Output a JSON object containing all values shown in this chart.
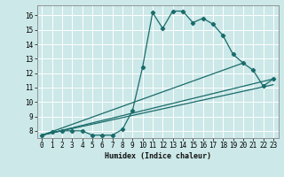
{
  "title": "",
  "xlabel": "Humidex (Indice chaleur)",
  "background_color": "#cce8e8",
  "grid_color": "#ffffff",
  "line_color": "#1a6b6b",
  "xlim": [
    -0.5,
    23.5
  ],
  "ylim": [
    7.5,
    16.7
  ],
  "xticks": [
    0,
    1,
    2,
    3,
    4,
    5,
    6,
    7,
    8,
    9,
    10,
    11,
    12,
    13,
    14,
    15,
    16,
    17,
    18,
    19,
    20,
    21,
    22,
    23
  ],
  "yticks": [
    8,
    9,
    10,
    11,
    12,
    13,
    14,
    15,
    16
  ],
  "main_x": [
    0,
    1,
    2,
    3,
    4,
    5,
    6,
    7,
    8,
    9,
    10,
    11,
    12,
    13,
    14,
    15,
    16,
    17,
    18,
    19,
    20,
    21,
    22,
    23
  ],
  "main_y": [
    7.7,
    7.9,
    8.0,
    8.0,
    8.0,
    7.7,
    7.7,
    7.7,
    8.1,
    9.4,
    12.4,
    16.2,
    15.1,
    16.3,
    16.3,
    15.5,
    15.8,
    15.4,
    14.6,
    13.3,
    12.7,
    12.2,
    11.1,
    11.6
  ],
  "line1_x": [
    0,
    23
  ],
  "line1_y": [
    7.7,
    11.6
  ],
  "line2_x": [
    0,
    20
  ],
  "line2_y": [
    7.7,
    12.7
  ],
  "line3_x": [
    0,
    23
  ],
  "line3_y": [
    7.7,
    11.2
  ],
  "figsize": [
    3.2,
    2.0
  ],
  "dpi": 100
}
